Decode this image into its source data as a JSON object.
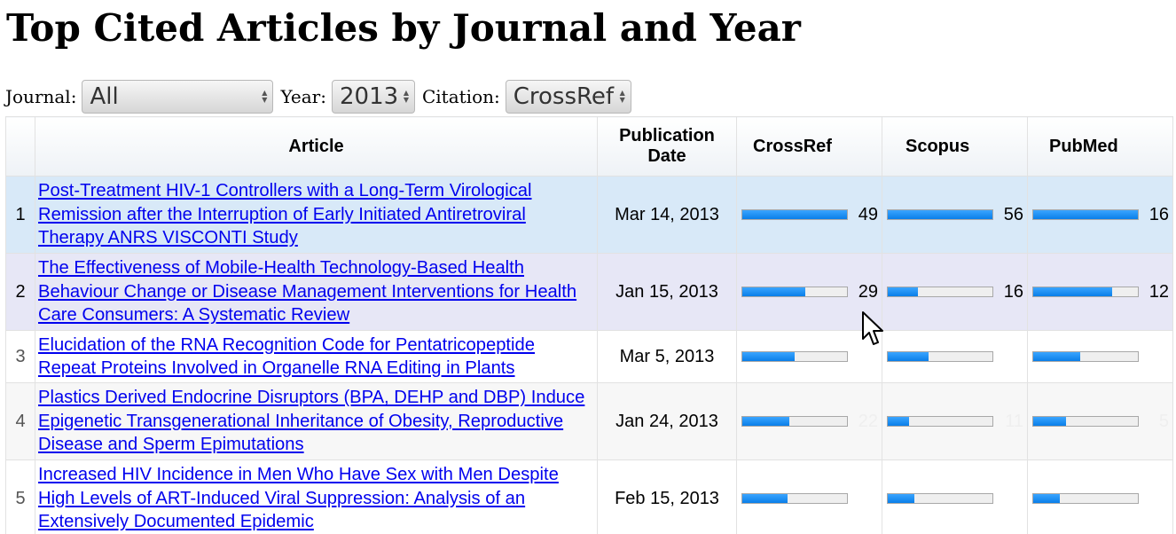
{
  "page_title": "Top Cited Articles by Journal and Year",
  "filters": {
    "journal_label": "Journal:",
    "journal_value": "All",
    "year_label": "Year:",
    "year_value": "2013",
    "citation_label": "Citation:",
    "citation_value": "CrossRef"
  },
  "table": {
    "headers": {
      "article": "Article",
      "publication_date": "Publication Date",
      "crossref": "CrossRef",
      "scopus": "Scopus",
      "pubmed": "PubMed"
    },
    "rows": [
      {
        "rank": "1",
        "title": "Post-Treatment HIV-1 Controllers with a Long-Term Virological Remission after the Interruption of Early Initiated Antiretroviral Therapy ANRS VISCONTI Study",
        "date": "Mar 14, 2013",
        "crossref": "49",
        "crossref_fill": 1.0,
        "scopus": "56",
        "scopus_fill": 1.0,
        "pubmed": "16",
        "pubmed_fill": 1.0
      },
      {
        "rank": "2",
        "title": "The Effectiveness of Mobile-Health Technology-Based Health Behaviour Change or Disease Management Interventions for Health Care Consumers: A Systematic Review",
        "date": "Jan 15, 2013",
        "crossref": "29",
        "crossref_fill": 0.6,
        "scopus": "16",
        "scopus_fill": 0.29,
        "pubmed": "12",
        "pubmed_fill": 0.75
      },
      {
        "rank": "3",
        "title": "Elucidation of the RNA Recognition Code for Pentatricopeptide Repeat Proteins Involved in Organelle RNA Editing in Plants",
        "date": "Mar 5, 2013",
        "crossref": "",
        "crossref_fill": 0.5,
        "scopus": "",
        "scopus_fill": 0.39,
        "pubmed": "",
        "pubmed_fill": 0.45
      },
      {
        "rank": "4",
        "title": "Plastics Derived Endocrine Disruptors (BPA, DEHP and DBP) Induce Epigenetic Transgenerational Inheritance of Obesity, Reproductive Disease and Sperm Epimutations",
        "date": "Jan 24, 2013",
        "crossref": "22",
        "crossref_fill": 0.45,
        "scopus": "11",
        "scopus_fill": 0.2,
        "pubmed": "5",
        "pubmed_fill": 0.31
      },
      {
        "rank": "5",
        "title": "Increased HIV Incidence in Men Who Have Sex with Men Despite High Levels of ART-Induced Viral Suppression: Analysis of an Extensively Documented Epidemic",
        "date": "Feb 15, 2013",
        "crossref": "",
        "crossref_fill": 0.43,
        "scopus": "",
        "scopus_fill": 0.25,
        "pubmed": "",
        "pubmed_fill": 0.25
      }
    ]
  }
}
